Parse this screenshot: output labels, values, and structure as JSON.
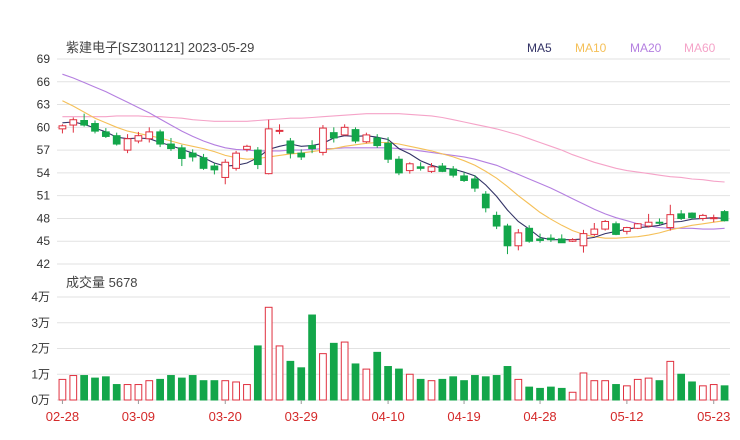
{
  "header": {
    "title": "紫建电子[SZ301121] 2023-05-29",
    "volume_label": "成交量 5678"
  },
  "legend": [
    {
      "name": "MA5",
      "color": "#333366"
    },
    {
      "name": "MA10",
      "color": "#f5c058"
    },
    {
      "name": "MA20",
      "color": "#b47fe0"
    },
    {
      "name": "MA60",
      "color": "#f5a3c8"
    }
  ],
  "colors": {
    "up": "#e0303f",
    "down": "#13a64a",
    "grid": "#e2e2e2",
    "axis_text": "#333333",
    "date_text": "#d42a2a"
  },
  "chart_data": [
    {
      "type": "candlestick",
      "title": "紫建电子[SZ301121] 2023-05-29",
      "ylim": [
        42,
        69
      ],
      "yticks": [
        42,
        45,
        48,
        51,
        54,
        57,
        60,
        63,
        66,
        69
      ],
      "ohlc": [
        [
          59.8,
          60.4,
          59.2,
          60.2
        ],
        [
          60.3,
          61.3,
          59.3,
          61.0
        ],
        [
          60.9,
          61.8,
          60.1,
          60.3
        ],
        [
          60.5,
          60.9,
          59.2,
          59.5
        ],
        [
          59.4,
          59.9,
          58.6,
          58.8
        ],
        [
          58.9,
          59.3,
          57.6,
          57.8
        ],
        [
          57.0,
          59.1,
          56.6,
          58.5
        ],
        [
          58.2,
          59.4,
          57.9,
          58.9
        ],
        [
          58.5,
          60.0,
          58.0,
          59.4
        ],
        [
          59.4,
          59.7,
          57.4,
          57.8
        ],
        [
          57.8,
          58.6,
          56.9,
          57.2
        ],
        [
          57.3,
          57.7,
          54.9,
          55.9
        ],
        [
          56.6,
          57.1,
          55.5,
          56.1
        ],
        [
          56.0,
          56.5,
          54.4,
          54.6
        ],
        [
          54.9,
          55.3,
          53.8,
          54.4
        ],
        [
          53.4,
          55.8,
          52.5,
          55.4
        ],
        [
          54.6,
          56.9,
          54.3,
          56.6
        ],
        [
          57.1,
          57.7,
          56.8,
          57.5
        ],
        [
          57.0,
          57.4,
          54.5,
          55.1
        ],
        [
          53.9,
          61.0,
          53.8,
          59.8
        ],
        [
          59.6,
          60.4,
          59.1,
          59.6
        ],
        [
          58.2,
          58.6,
          55.9,
          56.6
        ],
        [
          56.6,
          57.1,
          55.7,
          56.1
        ],
        [
          57.6,
          58.3,
          56.6,
          57.2
        ],
        [
          56.7,
          60.3,
          56.3,
          59.9
        ],
        [
          59.3,
          60.0,
          58.0,
          58.6
        ],
        [
          59.0,
          60.4,
          59.0,
          60.0
        ],
        [
          59.7,
          60.0,
          57.9,
          58.2
        ],
        [
          58.1,
          59.3,
          57.9,
          59.0
        ],
        [
          58.6,
          59.1,
          57.3,
          57.6
        ],
        [
          57.9,
          58.7,
          55.3,
          55.8
        ],
        [
          55.8,
          56.2,
          53.7,
          54.0
        ],
        [
          54.3,
          55.4,
          53.9,
          55.2
        ],
        [
          54.8,
          55.4,
          54.3,
          54.6
        ],
        [
          54.2,
          55.3,
          54.0,
          54.8
        ],
        [
          54.9,
          55.3,
          54.1,
          54.2
        ],
        [
          54.5,
          54.9,
          53.4,
          53.7
        ],
        [
          53.6,
          54.1,
          52.8,
          53.0
        ],
        [
          53.2,
          53.7,
          51.5,
          52.0
        ],
        [
          51.2,
          51.6,
          48.8,
          49.4
        ],
        [
          48.4,
          48.9,
          46.6,
          47.0
        ],
        [
          47.0,
          47.3,
          43.3,
          44.4
        ],
        [
          44.4,
          46.6,
          43.8,
          46.1
        ],
        [
          46.7,
          47.1,
          44.8,
          45.0
        ],
        [
          45.3,
          46.0,
          44.8,
          45.1
        ],
        [
          45.4,
          45.9,
          44.9,
          45.2
        ],
        [
          45.3,
          45.9,
          44.8,
          44.8
        ],
        [
          45.0,
          45.4,
          44.9,
          45.2
        ],
        [
          44.4,
          46.5,
          43.5,
          46.0
        ],
        [
          45.9,
          47.4,
          45.7,
          46.6
        ],
        [
          46.6,
          47.8,
          46.4,
          47.6
        ],
        [
          47.3,
          47.6,
          45.8,
          45.9
        ],
        [
          46.3,
          46.9,
          45.9,
          46.8
        ],
        [
          46.7,
          47.4,
          46.6,
          47.3
        ],
        [
          47.0,
          48.6,
          46.8,
          47.5
        ],
        [
          47.5,
          48.0,
          47.2,
          47.4
        ],
        [
          46.8,
          49.8,
          46.4,
          48.5
        ],
        [
          48.6,
          49.1,
          47.8,
          48.0
        ],
        [
          48.7,
          48.8,
          47.9,
          48.1
        ],
        [
          48.0,
          48.6,
          47.7,
          48.4
        ],
        [
          48.0,
          48.5,
          47.5,
          48.1
        ],
        [
          48.9,
          49.1,
          47.6,
          47.7
        ]
      ],
      "ma5": [
        60.6,
        60.7,
        60.4,
        59.9,
        59.4,
        58.7,
        58.5,
        58.6,
        58.5,
        58.0,
        57.6,
        57.1,
        56.6,
        56.0,
        55.3,
        54.9,
        55.0,
        55.3,
        56.0,
        57.1,
        57.5,
        57.8,
        57.5,
        57.6,
        57.9,
        58.6,
        58.9,
        58.8,
        58.9,
        58.7,
        58.4,
        57.2,
        56.5,
        55.6,
        55.0,
        54.6,
        54.5,
        54.1,
        53.6,
        52.4,
        50.9,
        49.1,
        47.6,
        46.6,
        45.5,
        45.2,
        45.2,
        45.2,
        45.3,
        45.5,
        46.0,
        46.3,
        46.6,
        46.8,
        46.9,
        47.1,
        47.5,
        47.6,
        47.9,
        48.0,
        48.1,
        48.0
      ],
      "ma10": [
        63.5,
        62.8,
        62.0,
        61.2,
        60.6,
        60.0,
        59.5,
        59.2,
        58.9,
        58.6,
        58.2,
        57.8,
        57.5,
        57.2,
        56.8,
        56.3,
        56.0,
        55.8,
        55.9,
        56.1,
        56.3,
        56.5,
        56.6,
        56.8,
        57.0,
        57.2,
        57.5,
        57.7,
        57.9,
        58.0,
        58.0,
        57.8,
        57.5,
        57.2,
        56.9,
        56.5,
        56.1,
        55.6,
        55.0,
        54.2,
        53.3,
        52.2,
        51.0,
        49.9,
        48.8,
        47.9,
        47.1,
        46.4,
        45.9,
        45.6,
        45.4,
        45.4,
        45.5,
        45.6,
        45.8,
        46.1,
        46.5,
        46.8,
        47.1,
        47.3,
        47.5,
        47.7
      ],
      "ma20": [
        67.0,
        66.5,
        65.9,
        65.3,
        64.7,
        64.0,
        63.3,
        62.6,
        61.9,
        61.1,
        60.3,
        59.5,
        58.8,
        58.2,
        57.7,
        57.3,
        57.1,
        57.0,
        56.9,
        56.9,
        56.9,
        57.0,
        57.0,
        57.1,
        57.2,
        57.2,
        57.3,
        57.3,
        57.3,
        57.3,
        57.3,
        57.2,
        57.1,
        56.9,
        56.7,
        56.5,
        56.3,
        56.1,
        55.8,
        55.4,
        55.0,
        54.4,
        53.8,
        53.2,
        52.6,
        52.0,
        51.3,
        50.6,
        49.9,
        49.2,
        48.6,
        48.1,
        47.7,
        47.3,
        47.0,
        46.8,
        46.7,
        46.7,
        46.7,
        46.6,
        46.6,
        46.7
      ],
      "ma60": [
        61.4,
        61.4,
        61.4,
        61.4,
        61.4,
        61.5,
        61.5,
        61.5,
        61.4,
        61.4,
        61.3,
        61.2,
        61.0,
        60.9,
        60.8,
        60.8,
        60.8,
        60.8,
        60.9,
        61.0,
        61.1,
        61.2,
        61.2,
        61.3,
        61.4,
        61.5,
        61.6,
        61.7,
        61.8,
        61.8,
        61.8,
        61.8,
        61.7,
        61.6,
        61.5,
        61.3,
        61.0,
        60.7,
        60.4,
        60.1,
        59.8,
        59.4,
        59.0,
        58.5,
        58.0,
        57.5,
        57.0,
        56.4,
        55.9,
        55.4,
        55.0,
        54.6,
        54.3,
        54.1,
        53.9,
        53.7,
        53.5,
        53.4,
        53.2,
        53.1,
        52.9,
        52.8
      ]
    },
    {
      "type": "bar",
      "title": "成交量 5678",
      "ylim": [
        0,
        4
      ],
      "yticks": [
        "0万",
        "1万",
        "2万",
        "3万",
        "4万"
      ],
      "ytick_values": [
        0,
        1,
        2,
        3,
        4
      ],
      "categories": [
        "02-28",
        "03-09",
        "03-20",
        "03-29",
        "04-10",
        "04-19",
        "04-28",
        "05-12",
        "05-23"
      ],
      "volumes": [
        0.8,
        0.95,
        0.95,
        0.85,
        0.9,
        0.6,
        0.6,
        0.6,
        0.75,
        0.8,
        0.95,
        0.85,
        0.95,
        0.75,
        0.75,
        0.75,
        0.7,
        0.6,
        2.1,
        3.6,
        2.1,
        1.5,
        1.25,
        3.3,
        1.8,
        2.2,
        2.25,
        1.4,
        1.2,
        1.85,
        1.3,
        1.2,
        1.0,
        0.8,
        0.75,
        0.8,
        0.9,
        0.75,
        0.95,
        0.9,
        0.95,
        1.3,
        0.8,
        0.5,
        0.45,
        0.5,
        0.45,
        0.3,
        1.05,
        0.75,
        0.75,
        0.6,
        0.55,
        0.8,
        0.85,
        0.75,
        1.5,
        1.0,
        0.7,
        0.55,
        0.6,
        0.55
      ]
    }
  ]
}
